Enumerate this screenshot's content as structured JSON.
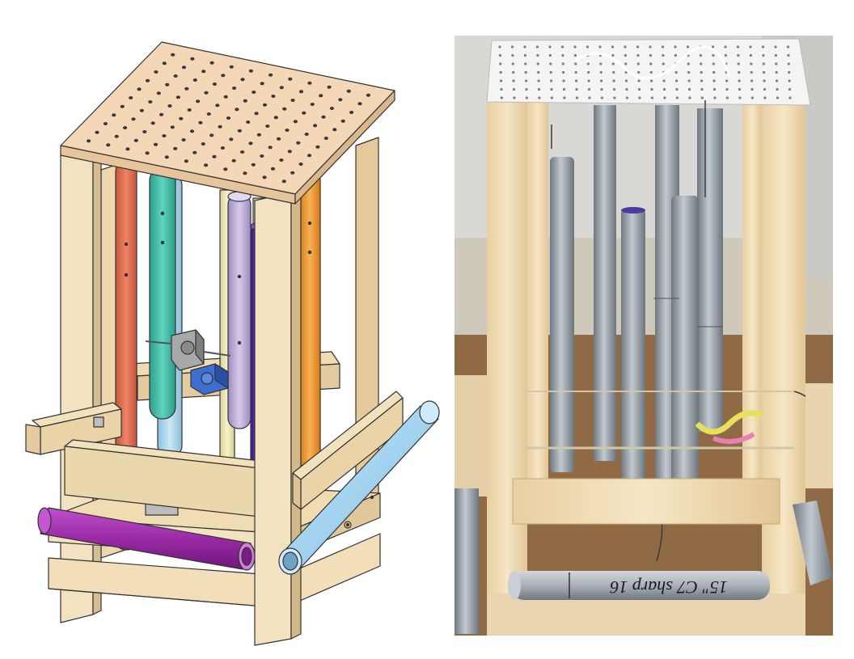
{
  "figure": {
    "left_panel": {
      "kind": "cad-model"
    },
    "right_panel": {
      "kind": "photograph",
      "tube_marking": "15\" C7 sharp 16"
    }
  },
  "colors": {
    "wood": "#f0dcb4",
    "wood_edge": "#3a3a3a",
    "top_board": "#f3d7b6",
    "pipe_orange_red": "#e06a4a",
    "pipe_teal": "#3fbfa6",
    "pipe_light_blue": "#a8d4ec",
    "pipe_lavender": "#b8a9d6",
    "pipe_purple_dark": "#5a2aa8",
    "pipe_orange": "#f0962c",
    "pipe_beige": "#ece7b0",
    "pipe_magenta": "#9a2aa6",
    "pipe_sky": "#a9d8f2",
    "motor_gray": "#9a9a9a",
    "motor_blue": "#3e6fd0",
    "photo_bg": "#c7c3ba",
    "photo_floor": "#9a6b3f",
    "photo_wood": "#f2deb8",
    "photo_tube": "#9aa3ab"
  }
}
